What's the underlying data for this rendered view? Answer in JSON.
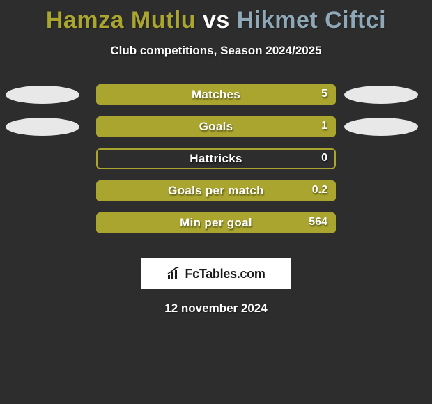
{
  "title_parts": {
    "player1": "Hamza Mutlu",
    "vs": "vs",
    "player2": "Hikmet Ciftci"
  },
  "title_colors": {
    "player1": "#a9a52e",
    "vs": "#ffffff",
    "player2": "#8fa8b8"
  },
  "subtitle": "Club competitions, Season 2024/2025",
  "colors": {
    "background": "#2d2d2d",
    "track": "#2d2d2d",
    "track_border": "#a9a52e",
    "fill": "#a9a52e",
    "ellipse_left": "#e8e8e8",
    "ellipse_right": "#e8e8e8",
    "text": "#ffffff",
    "logo_bg": "#ffffff",
    "logo_text": "#1a1a1a"
  },
  "bar_track_width": 344,
  "stats": [
    {
      "label": "Matches",
      "value": "5",
      "fill_ratio": 1.0,
      "show_ellipses": true
    },
    {
      "label": "Goals",
      "value": "1",
      "fill_ratio": 1.0,
      "show_ellipses": true
    },
    {
      "label": "Hattricks",
      "value": "0",
      "fill_ratio": 0.0,
      "show_ellipses": false
    },
    {
      "label": "Goals per match",
      "value": "0.2",
      "fill_ratio": 1.0,
      "show_ellipses": false
    },
    {
      "label": "Min per goal",
      "value": "564",
      "fill_ratio": 1.0,
      "show_ellipses": false
    }
  ],
  "logo": {
    "text": "FcTables.com"
  },
  "date": "12 november 2024",
  "typography": {
    "title_fontsize": 34,
    "subtitle_fontsize": 17,
    "stat_label_fontsize": 17,
    "stat_value_fontsize": 16,
    "logo_fontsize": 18,
    "date_fontsize": 17
  }
}
